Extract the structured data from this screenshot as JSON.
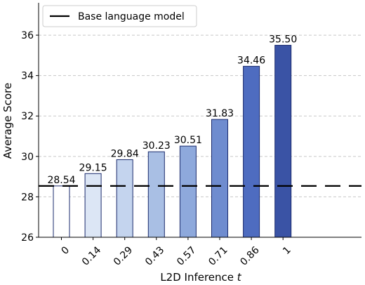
{
  "chart_data": {
    "type": "bar",
    "categories": [
      "0",
      "0.14",
      "0.29",
      "0.43",
      "0.57",
      "0.71",
      "0.86",
      "1"
    ],
    "values": [
      28.54,
      29.15,
      29.84,
      30.23,
      30.51,
      31.83,
      34.46,
      35.5
    ],
    "value_labels": [
      "28.54",
      "29.15",
      "29.84",
      "30.23",
      "30.51",
      "31.83",
      "34.46",
      "35.50"
    ],
    "bar_colors": [
      "#ffffff",
      "#dce6f5",
      "#c4d4ee",
      "#a9bfe4",
      "#8ea9dc",
      "#6f8ccf",
      "#4e6cc0",
      "#3a53a5"
    ],
    "baseline": {
      "value": 28.54,
      "label": "Base language model"
    },
    "xlabel_prefix": "L2D Inference ",
    "xlabel_var": "t",
    "ylabel": "Average Score",
    "ylim": [
      26,
      37.6
    ],
    "yticks": [
      26,
      28,
      30,
      32,
      34,
      36
    ],
    "grid": "horizontal dashed",
    "legend_position": "top-left"
  }
}
